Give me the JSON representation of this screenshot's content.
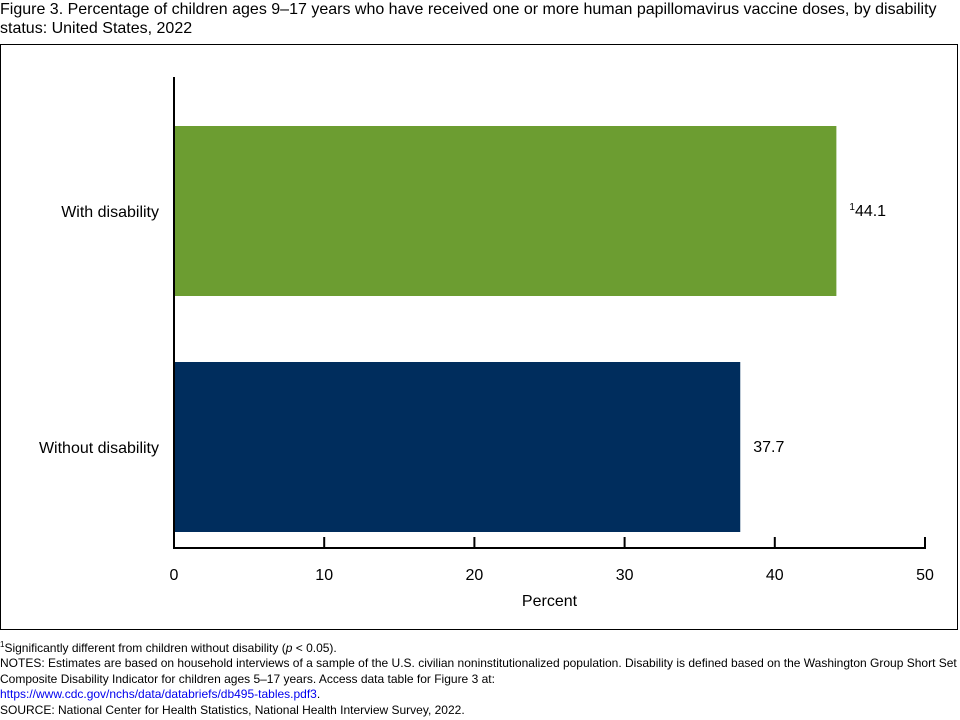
{
  "title": "Figure 3. Percentage of children ages 9–17 years who have received one or more human papillomavirus vaccine doses, by disability status: United States, 2022",
  "chart_data": {
    "type": "bar",
    "orientation": "horizontal",
    "categories": [
      "With disability",
      "Without disability"
    ],
    "values": [
      44.1,
      37.7
    ],
    "value_labels": [
      "44.1",
      "37.7"
    ],
    "value_label_superscripts": [
      "1",
      ""
    ],
    "bar_colors": [
      "#6c9d31",
      "#002d5d"
    ],
    "xlabel": "Percent",
    "ylabel": "",
    "xlim": [
      0,
      50
    ],
    "xticks": [
      0,
      10,
      20,
      30,
      40,
      50
    ],
    "grid": false,
    "legend": "none"
  },
  "footnotes": {
    "footnote_marker": "1",
    "footnote_text": "Significantly different from children without disability (",
    "footnote_p": "p",
    "footnote_tail": " < 0.05).",
    "notes_text": "NOTES: Estimates are based on household interviews of a sample of the U.S. civilian noninstitutionalized population. Disability is defined based on the Washington Group Short Set Composite Disability Indicator for children ages 5–17 years. Access data table for Figure 3 at:",
    "notes_link": "https://www.cdc.gov/nchs/data/databriefs/db495-tables.pdf3",
    "notes_link_tail": ".",
    "source_text": "SOURCE: National Center for Health Statistics, National Health Interview Survey, 2022."
  }
}
